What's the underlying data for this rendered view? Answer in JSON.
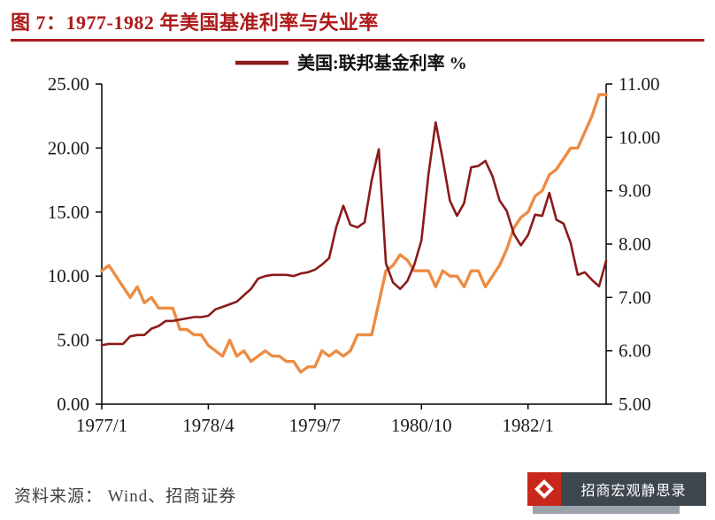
{
  "title": {
    "label": "图 7：1977-1982 年美国基准利率与失业率"
  },
  "source": {
    "label": "资料来源： Wind、招商证券"
  },
  "watermark": {
    "label": "招商宏观静思录"
  },
  "colors": {
    "title_red": "#AD1A1A",
    "line_red": "#8B1A1A",
    "line_orange": "#EC8C43",
    "axis_text": "#1a1a1a",
    "watermark_bg": "#3E4750",
    "watermark_red": "#C8281C"
  },
  "chart_data": {
    "type": "line",
    "title": "1977-1982 年美国基准利率与失业率",
    "legend_position": "top-center",
    "grid": false,
    "x_tick_labels": [
      "1977/1",
      "1978/4",
      "1979/7",
      "1980/10",
      "1982/1"
    ],
    "x_tick_months": [
      0,
      15,
      30,
      45,
      60
    ],
    "months_total": 72,
    "left_axis": {
      "min": 0,
      "max": 25,
      "ticks": [
        "0.00",
        "5.00",
        "10.00",
        "15.00",
        "20.00",
        "25.00"
      ]
    },
    "right_axis": {
      "min": 5,
      "max": 11,
      "ticks": [
        "5.00",
        "6.00",
        "7.00",
        "8.00",
        "9.00",
        "10.00",
        "11.00"
      ]
    },
    "series": [
      {
        "id": "fed-funds-rate",
        "label": "美国:联邦基金利率 %",
        "axis": "left",
        "color": "#8B1A1A",
        "values": [
          4.6,
          4.7,
          4.7,
          4.7,
          5.3,
          5.4,
          5.4,
          5.9,
          6.1,
          6.5,
          6.5,
          6.6,
          6.7,
          6.8,
          6.8,
          6.9,
          7.4,
          7.6,
          7.8,
          8.0,
          8.5,
          9.0,
          9.8,
          10.0,
          10.1,
          10.1,
          10.1,
          10.0,
          10.2,
          10.3,
          10.5,
          10.9,
          11.4,
          13.8,
          15.5,
          14.0,
          13.8,
          14.2,
          17.5,
          19.9,
          11.0,
          9.5,
          9.0,
          9.6,
          10.9,
          12.8,
          18.0,
          22.0,
          19.1,
          15.9,
          14.7,
          15.7,
          18.5,
          18.6,
          19.0,
          17.8,
          15.9,
          15.1,
          13.3,
          12.4,
          13.2,
          14.8,
          14.7,
          16.5,
          14.4,
          14.1,
          12.6,
          10.1,
          10.3,
          9.7,
          9.2,
          11.2
        ]
      },
      {
        "id": "unemployment-rate-right-axis",
        "axis": "right",
        "color": "#EC8C43",
        "values": [
          7.5,
          7.6,
          7.4,
          7.2,
          7.0,
          7.2,
          6.9,
          7.0,
          6.8,
          6.8,
          6.8,
          6.4,
          6.4,
          6.3,
          6.3,
          6.1,
          6.0,
          5.9,
          6.2,
          5.9,
          6.0,
          5.8,
          5.9,
          6.0,
          5.9,
          5.9,
          5.8,
          5.8,
          5.6,
          5.7,
          5.7,
          6.0,
          5.9,
          6.0,
          5.9,
          6.0,
          6.3,
          6.3,
          6.3,
          6.9,
          7.5,
          7.6,
          7.8,
          7.7,
          7.5,
          7.5,
          7.5,
          7.2,
          7.5,
          7.4,
          7.4,
          7.2,
          7.5,
          7.5,
          7.2,
          7.4,
          7.6,
          7.9,
          8.3,
          8.5,
          8.6,
          8.9,
          9.0,
          9.3,
          9.4,
          9.6,
          9.8,
          9.8,
          10.1,
          10.4,
          10.8,
          10.8
        ]
      }
    ]
  }
}
